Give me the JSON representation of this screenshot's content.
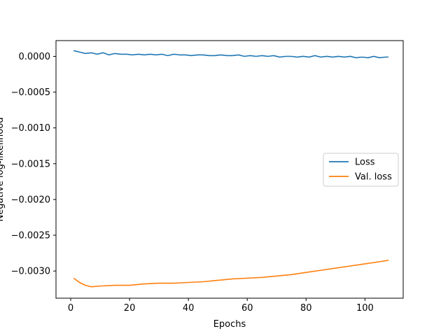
{
  "chart_data": {
    "type": "line",
    "title": "",
    "xlabel": "Epochs",
    "ylabel": "Negative log-likelihood",
    "xlim": [
      -5,
      113
    ],
    "ylim": [
      -0.00338,
      0.00022
    ],
    "xticks": [
      0,
      20,
      40,
      60,
      80,
      100
    ],
    "xtick_labels": [
      "0",
      "20",
      "40",
      "60",
      "80",
      "100"
    ],
    "yticks": [
      0,
      -0.0005,
      -0.001,
      -0.0015,
      -0.002,
      -0.0025,
      -0.003
    ],
    "ytick_labels": [
      "0.0000",
      "−0.0005",
      "−0.0010",
      "−0.0015",
      "−0.0020",
      "−0.0025",
      "−0.0030"
    ],
    "grid": false,
    "legend_position": "center-right",
    "series": [
      {
        "name": "Loss",
        "color": "#1f77b4",
        "points": [
          [
            1,
            8e-05
          ],
          [
            3,
            6e-05
          ],
          [
            5,
            4e-05
          ],
          [
            7,
            5e-05
          ],
          [
            9,
            3e-05
          ],
          [
            11,
            5e-05
          ],
          [
            13,
            2e-05
          ],
          [
            15,
            4e-05
          ],
          [
            17,
            3e-05
          ],
          [
            19,
            3e-05
          ],
          [
            21,
            2e-05
          ],
          [
            23,
            3e-05
          ],
          [
            25,
            2e-05
          ],
          [
            27,
            3e-05
          ],
          [
            29,
            2e-05
          ],
          [
            31,
            3e-05
          ],
          [
            33,
            1e-05
          ],
          [
            35,
            3e-05
          ],
          [
            37,
            2e-05
          ],
          [
            39,
            2e-05
          ],
          [
            41,
            1e-05
          ],
          [
            43,
            2e-05
          ],
          [
            45,
            2e-05
          ],
          [
            47,
            1e-05
          ],
          [
            49,
            1e-05
          ],
          [
            51,
            2e-05
          ],
          [
            53,
            1e-05
          ],
          [
            55,
            1e-05
          ],
          [
            57,
            2e-05
          ],
          [
            59,
            0.0
          ],
          [
            61,
            1e-05
          ],
          [
            63,
            0.0
          ],
          [
            65,
            1e-05
          ],
          [
            67,
            0.0
          ],
          [
            69,
            1e-05
          ],
          [
            71,
            -1e-05
          ],
          [
            73,
            0.0
          ],
          [
            75,
            0.0
          ],
          [
            77,
            -1e-05
          ],
          [
            79,
            0.0
          ],
          [
            81,
            -1e-05
          ],
          [
            83,
            1e-05
          ],
          [
            85,
            -1e-05
          ],
          [
            87,
            0.0
          ],
          [
            89,
            -1e-05
          ],
          [
            91,
            0.0
          ],
          [
            93,
            -1e-05
          ],
          [
            95,
            0.0
          ],
          [
            97,
            -2e-05
          ],
          [
            99,
            -1e-05
          ],
          [
            101,
            -2e-05
          ],
          [
            103,
            0.0
          ],
          [
            105,
            -2e-05
          ],
          [
            107,
            -1e-05
          ],
          [
            108,
            -1e-05
          ]
        ]
      },
      {
        "name": "Val. loss",
        "color": "#ff7f0e",
        "points": [
          [
            1,
            -0.0031
          ],
          [
            3,
            -0.00316
          ],
          [
            5,
            -0.0032
          ],
          [
            7,
            -0.00322
          ],
          [
            10,
            -0.00321
          ],
          [
            15,
            -0.0032
          ],
          [
            20,
            -0.0032
          ],
          [
            25,
            -0.00318
          ],
          [
            30,
            -0.00317
          ],
          [
            35,
            -0.00317
          ],
          [
            40,
            -0.00316
          ],
          [
            45,
            -0.00315
          ],
          [
            50,
            -0.00313
          ],
          [
            55,
            -0.00311
          ],
          [
            60,
            -0.0031
          ],
          [
            65,
            -0.00309
          ],
          [
            70,
            -0.00307
          ],
          [
            75,
            -0.00305
          ],
          [
            80,
            -0.00302
          ],
          [
            85,
            -0.00299
          ],
          [
            90,
            -0.00296
          ],
          [
            95,
            -0.00293
          ],
          [
            100,
            -0.0029
          ],
          [
            105,
            -0.00287
          ],
          [
            108,
            -0.00285
          ]
        ]
      }
    ]
  }
}
